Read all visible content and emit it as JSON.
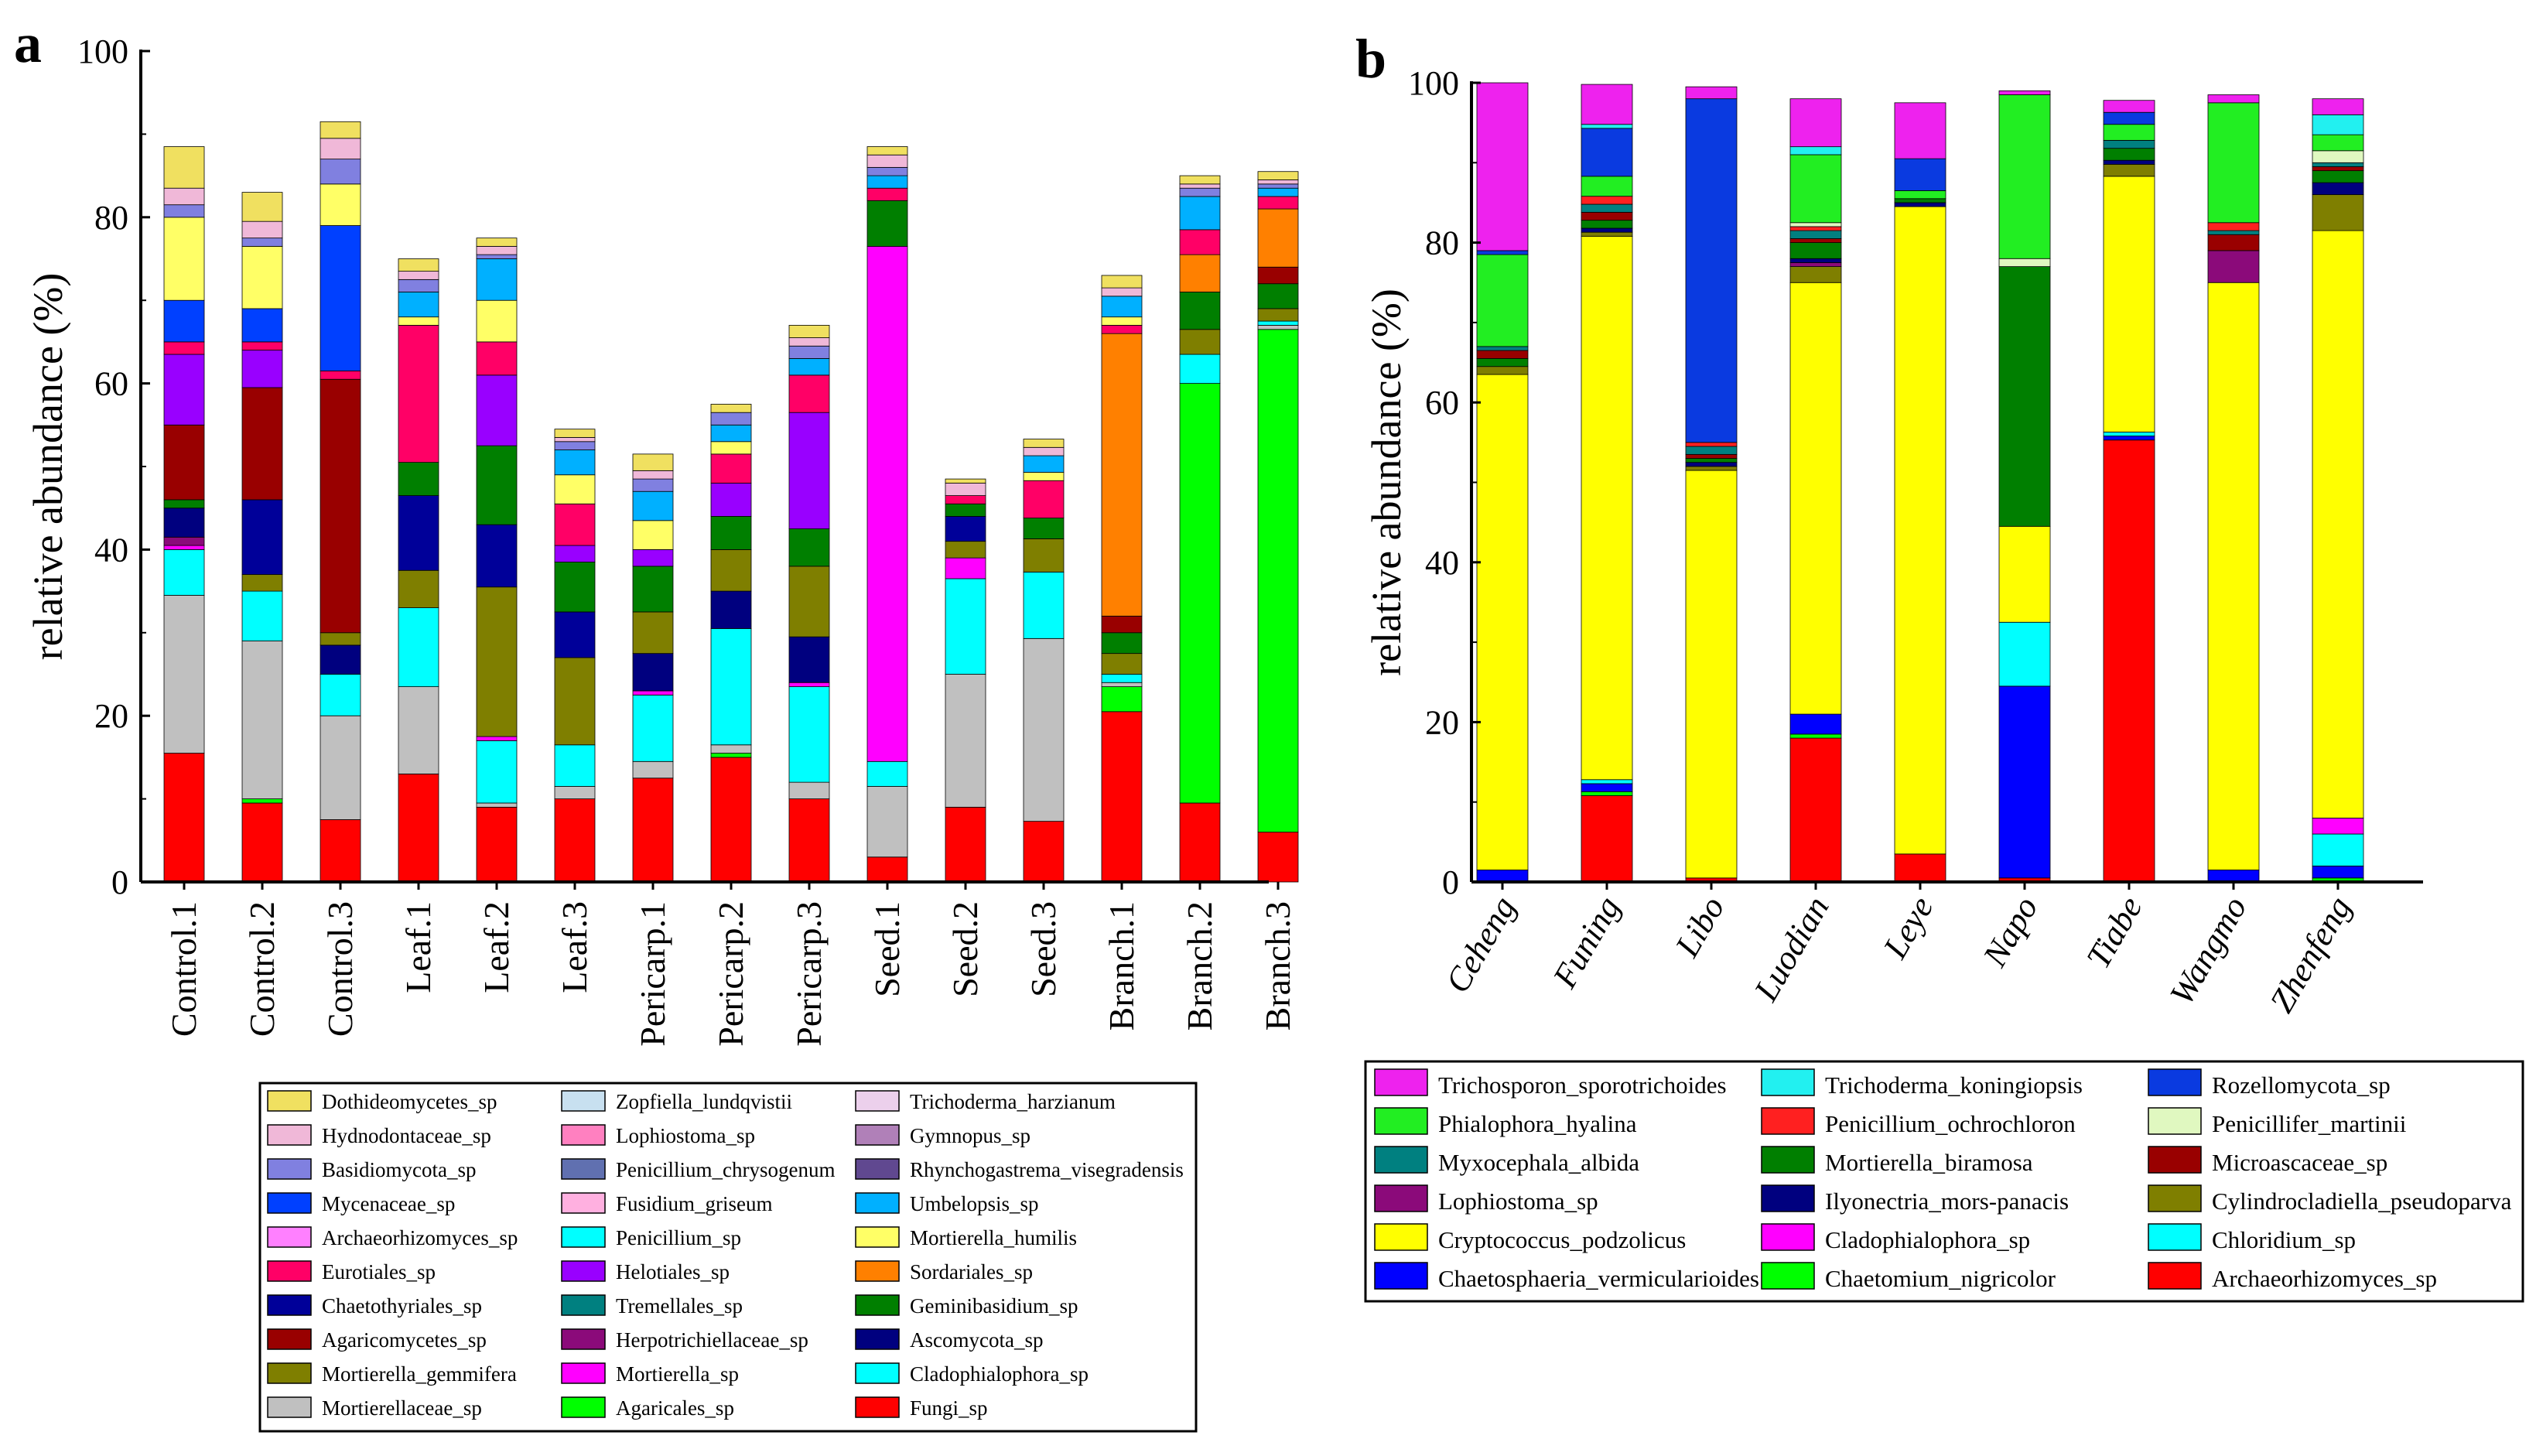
{
  "chart_data": [
    {
      "panel": "a",
      "type": "bar",
      "stacked": true,
      "ylabel": "relative abundance (%)",
      "ylim": [
        0,
        100
      ],
      "yticks": [
        0,
        20,
        40,
        60,
        80,
        100
      ],
      "categories": [
        "Control.1",
        "Control.2",
        "Control.3",
        "Leaf.1",
        "Leaf.2",
        "Leaf.3",
        "Pericarp.1",
        "Pericarp.2",
        "Pericarp.3",
        "Seed.1",
        "Seed.2",
        "Seed.3",
        "Branch.1",
        "Branch.2",
        "Branch.3"
      ],
      "series": [
        {
          "name": "Fungi_sp",
          "color": "#ff0000",
          "values": [
            15.5,
            9.5,
            7.5,
            13,
            9,
            10,
            12.5,
            15,
            10,
            3,
            9,
            7.3,
            20.5,
            9.5,
            6
          ]
        },
        {
          "name": "Agaricales_sp",
          "color": "#00ff00",
          "values": [
            0,
            0.5,
            0,
            0,
            0,
            0,
            0,
            0.5,
            0,
            0,
            0,
            0,
            3,
            50.5,
            60.5
          ]
        },
        {
          "name": "Mortierellaceae_sp",
          "color": "#c0c0c0",
          "values": [
            19,
            19,
            12.5,
            10.5,
            0.5,
            1.5,
            2,
            1,
            2,
            8.5,
            16,
            22,
            0.5,
            0,
            0.5
          ]
        },
        {
          "name": "Cladophialophora_sp",
          "color": "#00ffff",
          "values": [
            5.5,
            6,
            5,
            9.5,
            7.5,
            5,
            8,
            14,
            11.5,
            3,
            11.5,
            8,
            1,
            3.5,
            0.5
          ]
        },
        {
          "name": "Mortierella_sp",
          "color": "#ff00ff",
          "values": [
            0.5,
            0,
            0,
            0,
            0.5,
            0,
            0.5,
            0,
            0.5,
            62,
            2.5,
            0,
            0,
            0,
            0
          ]
        },
        {
          "name": "Herpotrichiellaceae_sp",
          "color": "#8b0a7a",
          "values": [
            1,
            0,
            0,
            0,
            0,
            0,
            0,
            0,
            0,
            0,
            0,
            0,
            0,
            0,
            0
          ]
        },
        {
          "name": "Ascomycota_sp",
          "color": "#00007f",
          "values": [
            3.5,
            0,
            3.5,
            0,
            0,
            0,
            4.5,
            4.5,
            5.5,
            0,
            0,
            0,
            0,
            0,
            0
          ]
        },
        {
          "name": "Mortierella_gemmifera",
          "color": "#7f7f00",
          "values": [
            0,
            2,
            1.5,
            4.5,
            18,
            10.5,
            5,
            5,
            8.5,
            0,
            2,
            4,
            2.5,
            3,
            1.5
          ]
        },
        {
          "name": "Chaetothyriales_sp",
          "color": "#000099",
          "values": [
            0,
            9,
            0,
            9,
            7.5,
            5.5,
            0,
            0,
            0,
            0,
            3,
            0,
            0,
            0,
            0
          ]
        },
        {
          "name": "Geminibasidium_sp",
          "color": "#007f00",
          "values": [
            1,
            0,
            0,
            4,
            9.5,
            6,
            5.5,
            4,
            4.5,
            5.5,
            1.5,
            2.5,
            2.5,
            4.5,
            3
          ]
        },
        {
          "name": "Agaricomycetes_sp",
          "color": "#990000",
          "values": [
            9,
            13.5,
            30.5,
            0,
            0,
            0,
            0,
            0,
            0,
            0,
            0,
            0,
            2,
            0,
            2
          ]
        },
        {
          "name": "Sordariales_sp",
          "color": "#ff8000",
          "values": [
            0,
            0,
            0,
            0,
            0,
            0,
            0,
            0,
            0,
            0,
            0,
            0,
            34,
            4.5,
            7
          ]
        },
        {
          "name": "Helotiales_sp",
          "color": "#9900ff",
          "values": [
            8.5,
            4.5,
            0,
            0,
            8.5,
            2,
            2,
            4,
            14,
            0,
            0,
            0,
            0,
            0,
            0
          ]
        },
        {
          "name": "Eurotiales_sp",
          "color": "#ff0066",
          "values": [
            1.5,
            1,
            1,
            16.5,
            4,
            5,
            0,
            3.5,
            4.5,
            1.5,
            1,
            4.5,
            1,
            3,
            1.5
          ]
        },
        {
          "name": "Mycenaceae_sp",
          "color": "#0040ff",
          "values": [
            5,
            4,
            17.5,
            0,
            0,
            0,
            0,
            0,
            0,
            0,
            0,
            0,
            0,
            0,
            0
          ]
        },
        {
          "name": "Mortierella_humilis",
          "color": "#ffff66",
          "values": [
            10,
            7.5,
            5,
            1,
            5,
            3.5,
            3.5,
            1.5,
            0,
            0,
            0,
            1,
            1,
            0,
            0
          ]
        },
        {
          "name": "Umbelopsis_sp",
          "color": "#00b0ff",
          "values": [
            0,
            0,
            0,
            3,
            5,
            3,
            3.5,
            2,
            2,
            1.5,
            0,
            2,
            2.5,
            4,
            1
          ]
        },
        {
          "name": "Basidiomycota_sp",
          "color": "#8080e0",
          "values": [
            1.5,
            1,
            3,
            1.5,
            0.5,
            1,
            1.5,
            1.5,
            1.5,
            1,
            0,
            0,
            0,
            1,
            0.5
          ]
        },
        {
          "name": "Hydnodontaceae_sp",
          "color": "#f0b8d8",
          "values": [
            2,
            2,
            2.5,
            1,
            1,
            0.5,
            1,
            0,
            1,
            1.5,
            1.5,
            1,
            1,
            0.5,
            0.5
          ]
        },
        {
          "name": "Dothideomycetes_sp",
          "color": "#f0e060",
          "values": [
            5,
            3.5,
            2,
            1.5,
            1,
            1,
            2,
            1,
            1.5,
            1,
            0.5,
            1,
            1.5,
            1,
            1
          ]
        }
      ],
      "legend": [
        "Dothideomycetes_sp",
        "Hydnodontaceae_sp",
        "Basidiomycota_sp",
        "Mycenaceae_sp",
        "Archaeorhizomyces_sp",
        "Eurotiales_sp",
        "Chaetothyriales_sp",
        "Agaricomycetes_sp",
        "Mortierella_gemmifera",
        "Mortierellaceae_sp",
        "Zopfiella_lundqvistii",
        "Lophiostoma_sp",
        "Penicillium_chrysogenum",
        "Fusidium_griseum",
        "Penicillium_sp",
        "Helotiales_sp",
        "Tremellales_sp",
        "Herpotrichiellaceae_sp",
        "Mortierella_sp",
        "Agaricales_sp",
        "Trichoderma_harzianum",
        "Gymnopus_sp",
        "Rhynchogastrema_visegradensis",
        "Umbelopsis_sp",
        "Mortierella_humilis",
        "Sordariales_sp",
        "Geminibasidium_sp",
        "Ascomycota_sp",
        "Cladophialophora_sp",
        "Fungi_sp"
      ],
      "legend_colors": [
        "#f0e060",
        "#f0b8d8",
        "#8080e0",
        "#0040ff",
        "#ff80ff",
        "#ff0066",
        "#000099",
        "#990000",
        "#7f7f00",
        "#c0c0c0",
        "#c8e0f0",
        "#ff80c0",
        "#6070b0",
        "#ffb0e0",
        "#00ffff",
        "#9900ff",
        "#008080",
        "#8b0a7a",
        "#ff00ff",
        "#00ff00",
        "#ecd0ec",
        "#b080b8",
        "#604890",
        "#00b0ff",
        "#ffff66",
        "#ff8000",
        "#007f00",
        "#00007f",
        "#00ffff",
        "#ff0000"
      ]
    },
    {
      "panel": "b",
      "type": "bar",
      "stacked": true,
      "ylabel": "relative abundance (%)",
      "ylim": [
        0,
        100
      ],
      "yticks": [
        0,
        20,
        40,
        60,
        80,
        100
      ],
      "categories": [
        "Ceheng",
        "Funing",
        "Libo",
        "Luodian",
        "Leye",
        "Napo",
        "Tiabe",
        "Wangmo",
        "Zhenfeng"
      ],
      "series": [
        {
          "name": "Archaeorhizomyces_sp",
          "color": "#ff0000",
          "values": [
            0,
            10.8,
            0.5,
            18,
            3.5,
            0.5,
            55.3,
            0,
            0
          ]
        },
        {
          "name": "Chaetomium_nigricolor",
          "color": "#00ff00",
          "values": [
            0,
            0.5,
            0,
            0.5,
            0,
            0,
            0,
            0,
            0.5
          ]
        },
        {
          "name": "Chaetosphaeria_vermicularioides",
          "color": "#0000ff",
          "values": [
            1.5,
            1,
            0,
            2.5,
            0,
            24,
            0.5,
            1.5,
            1.5
          ]
        },
        {
          "name": "Chloridium_sp",
          "color": "#00ffff",
          "values": [
            0,
            0.5,
            0,
            0,
            0,
            8,
            0.5,
            0,
            4
          ]
        },
        {
          "name": "Cladophialophora_sp",
          "color": "#ff00ff",
          "values": [
            0,
            0,
            0,
            0,
            0,
            0,
            0,
            0,
            2
          ]
        },
        {
          "name": "Cryptococcus_podzolicus",
          "color": "#ffff00",
          "values": [
            62,
            68,
            51,
            54,
            81,
            12,
            32,
            73.5,
            73.5
          ]
        },
        {
          "name": "Cylindrocladiella_pseudoparva",
          "color": "#7f7f00",
          "values": [
            1,
            0.5,
            0.5,
            2,
            0,
            0,
            1.5,
            0,
            4.5
          ]
        },
        {
          "name": "Lophiostoma_sp",
          "color": "#8b0a7a",
          "values": [
            0,
            0,
            0,
            0.5,
            0,
            0,
            0,
            4,
            0
          ]
        },
        {
          "name": "Ilyonectria_mors-panacis",
          "color": "#00007f",
          "values": [
            0,
            0.5,
            0.5,
            0.5,
            0.5,
            0,
            0.5,
            0,
            1.5
          ]
        },
        {
          "name": "Mortierella_biramosa",
          "color": "#007f00",
          "values": [
            1,
            1,
            0.5,
            2,
            0.5,
            32.5,
            1.5,
            0,
            1.5
          ]
        },
        {
          "name": "Microascaceae_sp",
          "color": "#990000",
          "values": [
            1,
            1,
            0.5,
            0.5,
            0,
            0,
            0,
            2,
            0.5
          ]
        },
        {
          "name": "Myxocephala_albida",
          "color": "#008080",
          "values": [
            0.5,
            1,
            1,
            1,
            0,
            0,
            1,
            0.5,
            0.5
          ]
        },
        {
          "name": "Penicillium_ochrochloron",
          "color": "#ff2020",
          "values": [
            0,
            1,
            0.5,
            0.5,
            0,
            0,
            0,
            1,
            0
          ]
        },
        {
          "name": "Penicillifer_martinii",
          "color": "#e0f8c0",
          "values": [
            0,
            0,
            0,
            0.5,
            0,
            1,
            0,
            0,
            1.5
          ]
        },
        {
          "name": "Phialophora_hyalina",
          "color": "#22ee22",
          "values": [
            11.5,
            2.5,
            0,
            8.5,
            1,
            20.5,
            2,
            15,
            2
          ]
        },
        {
          "name": "Rozellomycota_sp",
          "color": "#0a3ae0",
          "values": [
            0.5,
            6,
            43,
            0,
            4,
            0,
            1.5,
            0,
            0
          ]
        },
        {
          "name": "Trichoderma_koningiopsis",
          "color": "#22f0f0",
          "values": [
            0,
            0.5,
            0,
            1,
            0,
            0,
            0,
            0,
            2.5
          ]
        },
        {
          "name": "Trichosporon_sporotrichoides",
          "color": "#ee22ee",
          "values": [
            21,
            5,
            1.5,
            6,
            7,
            0.5,
            1.5,
            1,
            2
          ]
        }
      ],
      "legend": [
        "Trichosporon_sporotrichoides",
        "Phialophora_hyalina",
        "Myxocephala_albida",
        "Lophiostoma_sp",
        "Cryptococcus_podzolicus",
        "Chaetosphaeria_vermicularioides",
        "Trichoderma_koningiopsis",
        "Penicillium_ochrochloron",
        "Mortierella_biramosa",
        "Ilyonectria_mors-panacis",
        "Cladophialophora_sp",
        "Chaetomium_nigricolor",
        "Rozellomycota_sp",
        "Penicillifer_martinii",
        "Microascaceae_sp",
        "Cylindrocladiella_pseudoparva",
        "Chloridium_sp",
        "Archaeorhizomyces_sp"
      ],
      "legend_colors": [
        "#ee22ee",
        "#22ee22",
        "#008080",
        "#8b0a7a",
        "#ffff00",
        "#0000ff",
        "#22f0f0",
        "#ff2020",
        "#007f00",
        "#00007f",
        "#ff00ff",
        "#00ff00",
        "#0a3ae0",
        "#e0f8c0",
        "#990000",
        "#7f7f00",
        "#00ffff",
        "#ff0000"
      ]
    }
  ],
  "labels": {
    "panel_a": "a",
    "panel_b": "b"
  }
}
